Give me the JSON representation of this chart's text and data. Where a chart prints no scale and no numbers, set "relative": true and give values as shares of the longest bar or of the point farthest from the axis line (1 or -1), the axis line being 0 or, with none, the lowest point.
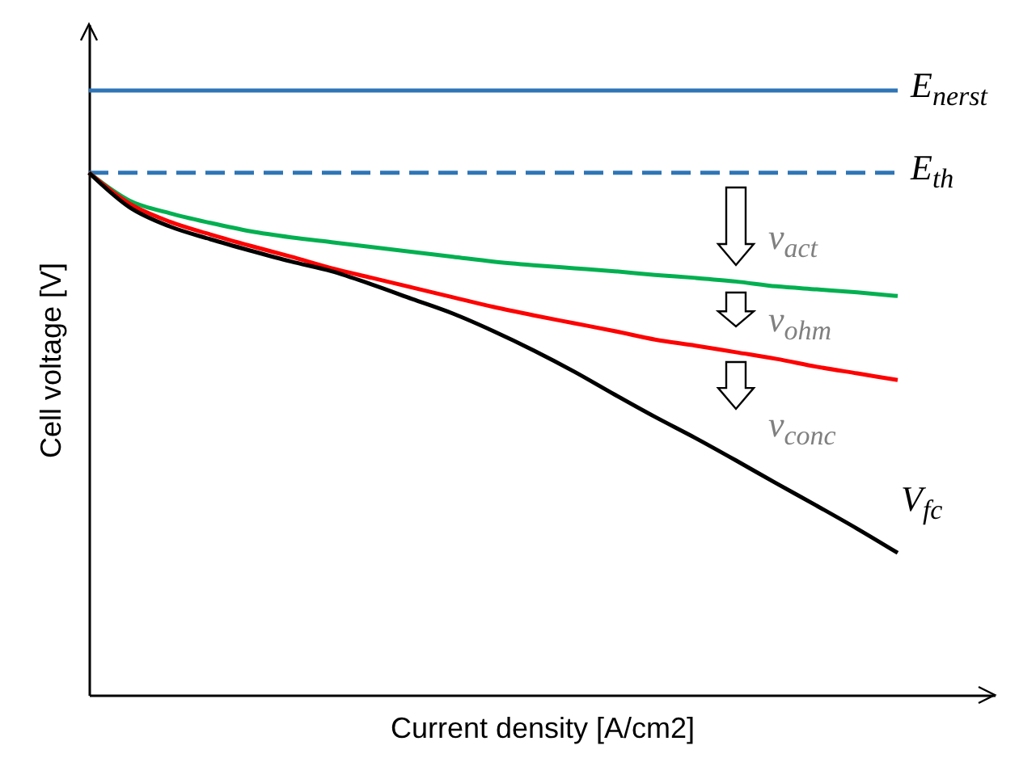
{
  "chart_data": {
    "type": "line",
    "relative": true,
    "xlabel": "Current density [A/cm2]",
    "ylabel": "Cell voltage [V]",
    "categories": [
      null,
      null,
      null,
      null,
      null,
      null,
      null,
      null,
      null,
      null,
      null,
      null,
      null,
      null,
      null,
      null,
      null,
      null,
      null,
      null,
      null
    ],
    "series": [
      {
        "name": "E$_{nerst}$",
        "color": "#2e75b6",
        "line_style": "solid",
        "values": [
          1,
          1,
          1,
          1,
          1,
          1,
          1,
          1,
          1,
          1,
          1,
          1,
          1,
          1,
          1,
          1,
          1,
          1,
          1,
          1,
          1
        ]
      },
      {
        "name": "E$_{th}$",
        "color": "#2e75b6",
        "line_style": "dashed",
        "values": [
          0.864,
          0.864,
          0.864,
          0.864,
          0.864,
          0.864,
          0.864,
          0.864,
          0.864,
          0.864,
          0.864,
          0.864,
          0.864,
          0.864,
          0.864,
          0.864,
          0.864,
          0.864,
          0.864,
          0.864,
          0.864
        ]
      },
      {
        "color": "#00b050",
        "line_style": "solid",
        "values": [
          0.864,
          0.818,
          0.797,
          0.781,
          0.767,
          0.757,
          0.749,
          0.741,
          0.733,
          0.725,
          0.717,
          0.711,
          0.706,
          0.701,
          0.695,
          0.69,
          0.684,
          0.676,
          0.671,
          0.666,
          0.66
        ]
      },
      {
        "color": "#ff0000",
        "line_style": "solid",
        "values": [
          0.864,
          0.813,
          0.783,
          0.762,
          0.743,
          0.725,
          0.706,
          0.69,
          0.674,
          0.658,
          0.642,
          0.628,
          0.615,
          0.602,
          0.588,
          0.578,
          0.567,
          0.556,
          0.543,
          0.532,
          0.521
        ]
      },
      {
        "name": "V$_{fc}$",
        "color": "#000000",
        "line_style": "solid",
        "values": [
          0.864,
          0.807,
          0.775,
          0.754,
          0.735,
          0.717,
          0.701,
          0.679,
          0.655,
          0.631,
          0.602,
          0.57,
          0.535,
          0.497,
          0.46,
          0.425,
          0.388,
          0.35,
          0.313,
          0.275,
          0.235
        ]
      }
    ],
    "annotations": [
      "v$_{act}$",
      "v$_{ohm}$",
      "v$_{conc}$"
    ]
  }
}
